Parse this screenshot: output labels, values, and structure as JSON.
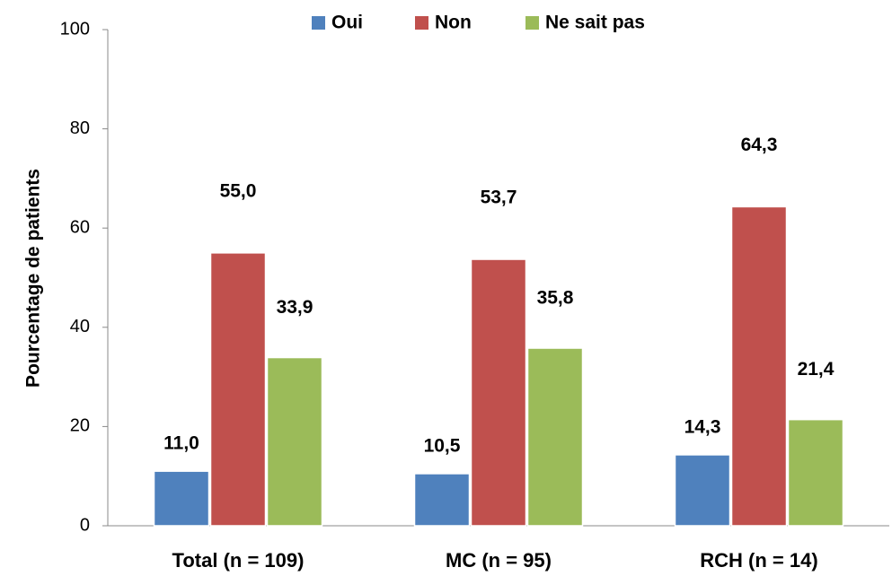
{
  "chart_data": {
    "type": "bar",
    "y_label": "Pourcentage de  patients",
    "categories": [
      "Total (n = 109)",
      "MC (n = 95)",
      "RCH (n = 14)"
    ],
    "series": [
      {
        "name": "Oui",
        "color": "#4f81bd",
        "values": [
          11.0,
          10.5,
          14.3
        ],
        "value_labels": [
          "11,0",
          "10,5",
          "14,3"
        ]
      },
      {
        "name": "Non",
        "color": "#c0504d",
        "values": [
          55.0,
          53.7,
          64.3
        ],
        "value_labels": [
          "55,0",
          "53,7",
          "64,3"
        ]
      },
      {
        "name": "Ne sait pas",
        "color": "#9bbb59",
        "values": [
          33.9,
          35.8,
          21.4
        ],
        "value_labels": [
          "33,9",
          "35,8",
          "21,4"
        ]
      }
    ],
    "ylim": [
      0,
      100
    ],
    "yticks": [
      0,
      20,
      40,
      60,
      80,
      100
    ],
    "grid": false,
    "legend": "top"
  }
}
